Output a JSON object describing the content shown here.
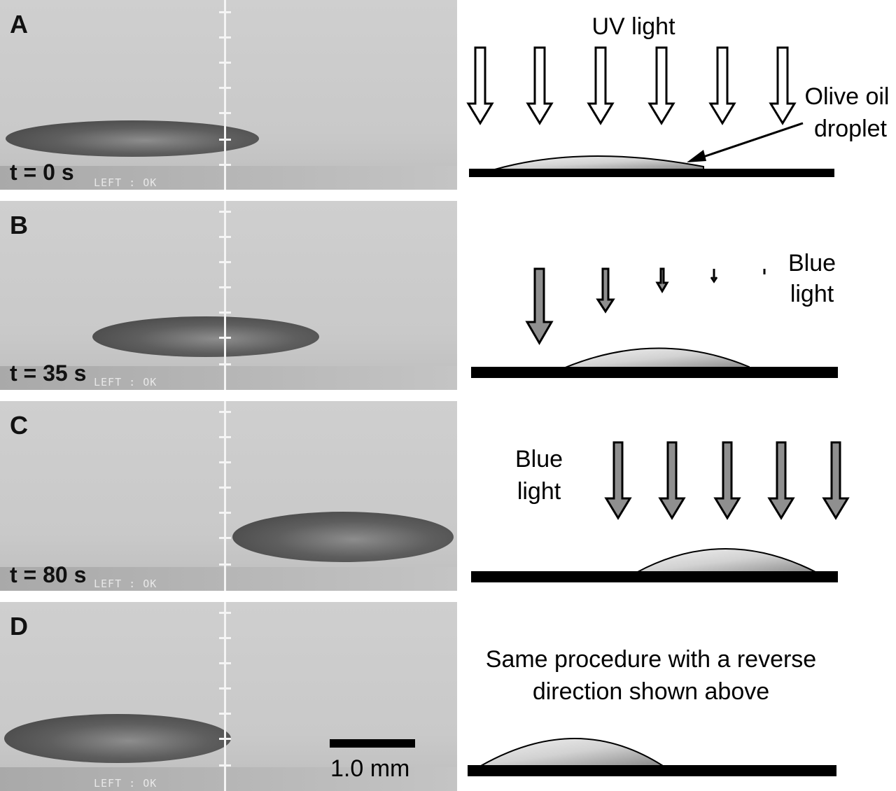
{
  "panels": [
    {
      "letter": "A",
      "time": "t = 0 s",
      "status": "LEFT  : OK"
    },
    {
      "letter": "B",
      "time": "t = 35 s",
      "status": "LEFT  : OK"
    },
    {
      "letter": "C",
      "time": "t = 80 s",
      "status": "LEFT  : OK"
    },
    {
      "letter": "D",
      "time": "",
      "status": "LEFT  : OK"
    }
  ],
  "scale_bar": {
    "label": "1.0 mm"
  },
  "diagram": {
    "uv_label": "UV light",
    "droplet_label_line1": "Olive oil",
    "droplet_label_line2": "droplet",
    "blue_label_b_line1": "Blue",
    "blue_label_b_line2": "light",
    "blue_label_c_line1": "Blue",
    "blue_label_c_line2": "light",
    "reverse_line1": "Same procedure with a reverse",
    "reverse_line2": "direction shown above"
  },
  "colors": {
    "uv_arrow": "#ffffff",
    "blue_arrow": "#8f8f8f",
    "substrate": "#000000"
  }
}
